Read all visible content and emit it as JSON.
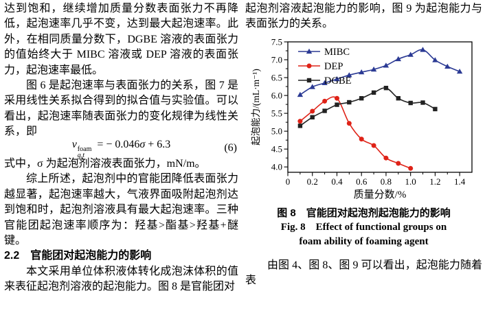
{
  "page": {
    "background": "#ffffff",
    "text_color": "#000000"
  },
  "left_column": {
    "para1": "达到饱和，继续增加质量分数表面张力不再降低，起泡速率几乎不变，达到最大起泡速率。此外，在相同质量分数下，DGBE 溶液的表面张力的值始终大于 MIBC 溶液或 DEP 溶液的表面张力，起泡速率最低。",
    "para2": "图 6 是起泡速率与表面张力的关系，图 7 是采用线性关系拟合得到的拟合值与实验值。可以看出，起泡速率随表面张力的变化规律为线性关系，即",
    "equation": {
      "var": "v",
      "sup": "foam",
      "sub": "g,t",
      "mid": "= − 0.046",
      "sigma": "σ",
      "tail": " + 6.3",
      "number": "(6)"
    },
    "para3": "式中，σ 为起泡剂溶液表面张力，mN/m。",
    "para4": "综上所述，起泡剂中的官能团降低表面张力越显著，起泡速率越大，气液界面吸附起泡剂达到饱和时，起泡剂溶液具有最大起泡速率。三种官能团起泡速率顺序为：羟基>酯基>羟基+醚键。",
    "section_heading": "2.2　官能团对起泡能力的影响",
    "para5": "本文采用单位体积液体转化成泡沫体积的值来表征起泡剂溶液的起泡能力。图 8 是官能团对"
  },
  "right_column": {
    "para1": "起泡剂溶液起泡能力的影响，图 9 为起泡能力与表面张力的关系。",
    "figure_caption_cn": "图 8　官能团对起泡剂起泡能力的影响",
    "figure_caption_en_line1": "Fig. 8　Effect of functional groups on",
    "figure_caption_en_line2": "foam ability of foaming agent",
    "para2": "由图 4、图 8、图 9 可以看出，起泡能力随着表"
  },
  "chart_data": {
    "type": "line",
    "title": "",
    "xlabel": "质量分数/%",
    "ylabel": "起泡能力/(mL·m⁻¹)",
    "xlim": [
      0,
      1.5
    ],
    "ylim": [
      3.85,
      7.5
    ],
    "xticks": [
      [
        0,
        "0"
      ],
      [
        0.2,
        "0.2"
      ],
      [
        0.4,
        "0.4"
      ],
      [
        0.6,
        "0.6"
      ],
      [
        0.8,
        "0.8"
      ],
      [
        1.0,
        "1.0"
      ],
      [
        1.2,
        "1.2"
      ],
      [
        1.4,
        "1.4"
      ]
    ],
    "yticks": [
      [
        4.0,
        "4.0"
      ],
      [
        4.5,
        "4.5"
      ],
      [
        5.0,
        "5.0"
      ],
      [
        5.5,
        "5.5"
      ],
      [
        6.0,
        "6.0"
      ],
      [
        6.5,
        "6.5"
      ],
      [
        7.0,
        "7.0"
      ],
      [
        7.5,
        "7.5"
      ]
    ],
    "x_minor_step": 0.1,
    "y_minor_step": 0.25,
    "grid": false,
    "legend_position": "top-left",
    "frame_color": "#000000",
    "series": [
      {
        "name": "MIBC",
        "color": "#2b3a94",
        "marker": "triangle",
        "x": [
          0.1,
          0.2,
          0.3,
          0.4,
          0.5,
          0.6,
          0.7,
          0.8,
          0.9,
          1.0,
          1.1,
          1.2,
          1.3,
          1.4
        ],
        "y": [
          6.02,
          6.24,
          6.35,
          6.46,
          6.57,
          6.65,
          6.73,
          6.84,
          7.02,
          7.14,
          7.28,
          6.99,
          6.81,
          6.67
        ]
      },
      {
        "name": "DEP",
        "color": "#df2318",
        "marker": "circle",
        "x": [
          0.1,
          0.2,
          0.3,
          0.4,
          0.5,
          0.6,
          0.7,
          0.8,
          0.9,
          1.0
        ],
        "y": [
          5.28,
          5.56,
          5.84,
          5.92,
          5.22,
          4.78,
          4.6,
          4.25,
          4.1,
          3.96
        ]
      },
      {
        "name": "DGBE",
        "color": "#222222",
        "marker": "square",
        "x": [
          0.1,
          0.2,
          0.3,
          0.4,
          0.5,
          0.6,
          0.7,
          0.8,
          0.9,
          1.0,
          1.1,
          1.2
        ],
        "y": [
          5.15,
          5.39,
          5.57,
          5.74,
          5.81,
          5.92,
          6.08,
          6.21,
          5.92,
          5.79,
          5.8,
          5.62
        ]
      }
    ]
  }
}
